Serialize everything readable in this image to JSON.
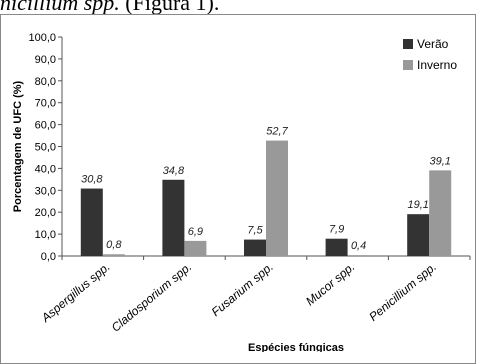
{
  "caption": {
    "italic": "nicillium spp.",
    "rest": " (Figura 1)."
  },
  "chart_data": {
    "type": "bar",
    "categories": [
      "Aspergillus spp.",
      "Cladosporium spp.",
      "Fusarium spp.",
      "Mucor spp.",
      "Penicillium spp."
    ],
    "series": [
      {
        "name": "Verão",
        "values": [
          30.8,
          34.8,
          7.5,
          7.9,
          19.1
        ],
        "labels": [
          "30,8",
          "34,8",
          "7,5",
          "7,9",
          "19,1"
        ],
        "color": "#333333"
      },
      {
        "name": "Inverno",
        "values": [
          0.8,
          6.9,
          52.7,
          0.4,
          39.1
        ],
        "labels": [
          "0,8",
          "6,9",
          "52,7",
          "0,4",
          "39,1"
        ],
        "color": "#999999"
      }
    ],
    "ylim": [
      0,
      100
    ],
    "yticks": [
      "0,0",
      "10,0",
      "20,0",
      "30,0",
      "40,0",
      "50,0",
      "60,0",
      "70,0",
      "80,0",
      "90,0",
      "100,0"
    ],
    "ylabel": "Porcentagem de UFC (%)",
    "xlabel": "Espécies fúngicas",
    "legend": "top-right",
    "grid": false
  }
}
